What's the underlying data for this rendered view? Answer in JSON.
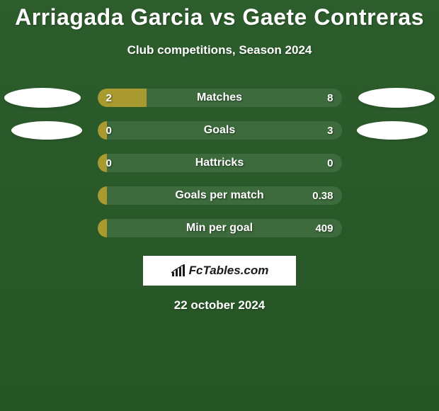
{
  "title": {
    "player1": "Arriagada Garcia",
    "vs": "vs",
    "player2": "Gaete Contreras"
  },
  "subtitle": "Club competitions, Season 2024",
  "colors": {
    "left_bar": "#a89a2e",
    "right_bar": "#3d6b3d",
    "ellipse": "#ffffff",
    "background": "#2a5a2a",
    "text": "#ffffff"
  },
  "bar_track_width": 345,
  "bar_track_height": 26,
  "ellipse_size": {
    "w": 108,
    "h": 28
  },
  "stats": [
    {
      "label": "Matches",
      "left_value": "2",
      "right_value": "8",
      "left_pct": 20,
      "right_pct": 80,
      "show_ellipses": true
    },
    {
      "label": "Goals",
      "left_value": "0",
      "right_value": "3",
      "left_pct": 4,
      "right_pct": 96,
      "show_ellipses": true,
      "ellipse_inset": true
    },
    {
      "label": "Hattricks",
      "left_value": "0",
      "right_value": "0",
      "left_pct": 4,
      "right_pct": 0,
      "show_ellipses": false
    },
    {
      "label": "Goals per match",
      "left_value": "",
      "right_value": "0.38",
      "left_pct": 4,
      "right_pct": 96,
      "show_ellipses": false
    },
    {
      "label": "Min per goal",
      "left_value": "",
      "right_value": "409",
      "left_pct": 4,
      "right_pct": 96,
      "show_ellipses": false
    }
  ],
  "brand": "FcTables.com",
  "date": "22 october 2024"
}
